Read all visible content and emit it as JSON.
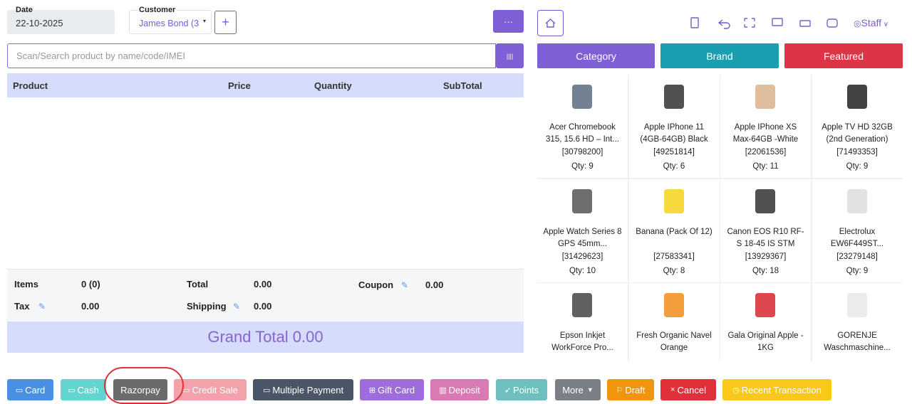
{
  "form": {
    "date_label": "Date",
    "date": "22-10-2025",
    "customer_label": "Customer",
    "customer": "James Bond (3",
    "add_button": "+",
    "more_button": "···"
  },
  "search_placeholder": "Scan/Search product by name/code/IMEI",
  "table": {
    "headers": [
      "Product",
      "Price",
      "Quantity",
      "SubTotal"
    ]
  },
  "summary": {
    "items_label": "Items",
    "items": "0 (0)",
    "total_label": "Total",
    "total": "0.00",
    "coupon_label": "Coupon",
    "coupon": "0.00",
    "tax_label": "Tax",
    "tax": "0.00",
    "shipping_label": "Shipping",
    "shipping": "0.00",
    "grand_total": "Grand Total 0.00"
  },
  "toolbar": {
    "user": "Staff"
  },
  "tabs": [
    "Category",
    "Brand",
    "Featured"
  ],
  "products": [
    {
      "name": "Acer Chromebook 315, 15.6 HD – Int...",
      "code": "[30798200]",
      "qty": "Qty: 9"
    },
    {
      "name": "Apple IPhone 11 (4GB-64GB) Black",
      "code": "[49251814]",
      "qty": "Qty: 6"
    },
    {
      "name": "Apple IPhone XS Max-64GB -White",
      "code": "[22061536]",
      "qty": "Qty: 11"
    },
    {
      "name": "Apple TV HD 32GB (2nd Generation)",
      "code": "[71493353]",
      "qty": "Qty: 9"
    },
    {
      "name": "Apple Watch Series 8 GPS 45mm...",
      "code": "[31429623]",
      "qty": "Qty: 10"
    },
    {
      "name": "Banana (Pack Of 12)",
      "code": "[27583341]",
      "qty": "Qty: 8"
    },
    {
      "name": "Canon EOS R10 RF-S 18-45 IS STM",
      "code": "[13929367]",
      "qty": "Qty: 18"
    },
    {
      "name": "Electrolux EW6F449ST...",
      "code": "[23279148]",
      "qty": "Qty: 9"
    },
    {
      "name": "Epson Inkjet WorkForce Pro..."
    },
    {
      "name": "Fresh Organic Navel Orange"
    },
    {
      "name": "Gala Original Apple - 1KG"
    },
    {
      "name": "GORENJE Waschmaschine..."
    }
  ],
  "buttons": [
    "Card",
    "Cash",
    "Razorpay",
    "Credit Sale",
    "Multiple Payment",
    "Gift Card",
    "Deposit",
    "Points",
    "More",
    "Draft",
    "Cancel",
    "Recent Transaction"
  ]
}
